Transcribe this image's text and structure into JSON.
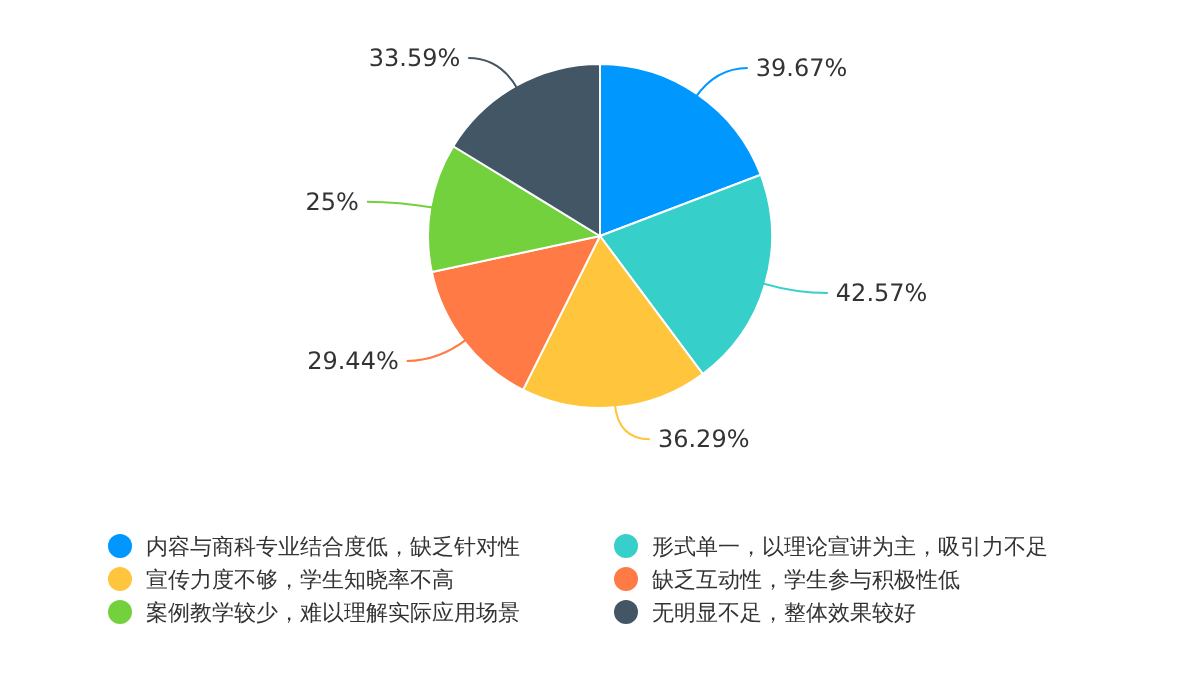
{
  "chart_data": {
    "type": "pie",
    "categories": [
      "内容与商科专业结合度低，缺乏针对性",
      "形式单一，以理论宣讲为主，吸引力不足",
      "宣传力度不够，学生知晓率不高",
      "缺乏互动性，学生参与积极性低",
      "案例教学较少，难以理解实际应用场景",
      "无明显不足，整体效果较好"
    ],
    "values": [
      39.67,
      42.57,
      36.29,
      29.44,
      25,
      33.59
    ],
    "colors": [
      "#0098ff",
      "#36cfc9",
      "#ffc53d",
      "#ff7a45",
      "#73d13d",
      "#435665"
    ],
    "value_labels": [
      "39.67%",
      "42.57%",
      "36.29%",
      "29.44%",
      "25%",
      "33.59%"
    ],
    "legend": "bottom"
  }
}
